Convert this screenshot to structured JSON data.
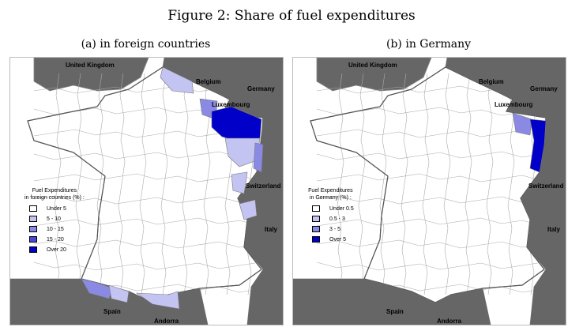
{
  "title": "Figure 2: Share of fuel expenditures",
  "colors": {
    "neighbor": "#666666",
    "france": "#ffffff",
    "border": "#555555",
    "c0": "#ffffff",
    "c1": "#c4c4f2",
    "c2": "#8a8ae4",
    "c3": "#4848d4",
    "c4": "#0000c8"
  },
  "panels": [
    {
      "subtitle": "(a) in foreign countries",
      "legend": {
        "title1": "Fuel Expenditures",
        "title2": "in foreign countries (%) :",
        "items": [
          "Under 5",
          "5 - 10",
          "10 - 15",
          "15 - 20",
          "Over 20"
        ]
      },
      "shaded": {
        "nord": "c1",
        "ardennes": "c2",
        "lorraine": "c4",
        "meurthe": "c1",
        "alsace": "c2",
        "doubs": "c1",
        "savoie": "c1",
        "pyr_atl": "c2",
        "landes": "c1",
        "pyr_or": "c1"
      }
    },
    {
      "subtitle": "(b) in Germany",
      "legend": {
        "title1": "Fuel Expenditures",
        "title2": "in Germany (%) :",
        "items": [
          "Under 0.5",
          "0.5 - 3",
          "3 - 5",
          "Over 5"
        ]
      },
      "shaded": {
        "moselle": "c2",
        "alsace_b": "c4"
      }
    }
  ],
  "labels": {
    "uk": "United Kingdom",
    "belgium": "Belgium",
    "germany": "Germany",
    "luxembourg": "Luxembourg",
    "switzerland": "Switzerland",
    "italy": "Italy",
    "spain": "Spain",
    "andorra": "Andorra"
  }
}
